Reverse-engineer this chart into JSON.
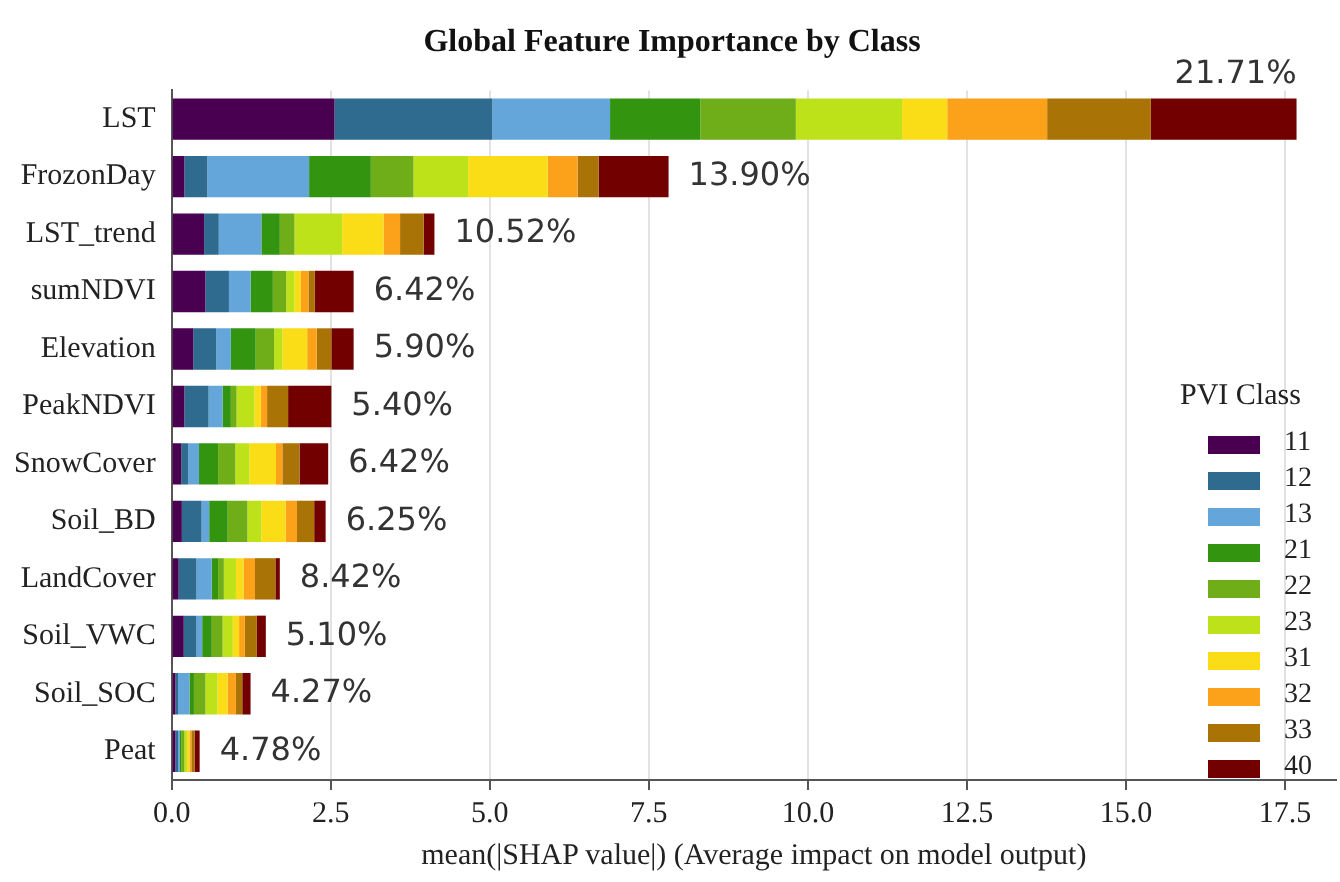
{
  "chart_data": {
    "type": "bar",
    "orientation": "horizontal",
    "stacked": true,
    "title": "Global Feature Importance by Class",
    "xlabel": "mean(|SHAP value|) (Average impact on model output)",
    "legend_title": "PVI Class",
    "legend": "right",
    "grid": "x",
    "categories": [
      "LST",
      "FrozonDay",
      "LST_trend",
      "sumNDVI",
      "Elevation",
      "PeakNDVI",
      "SnowCover",
      "Soil_BD",
      "LandCover",
      "Soil_VWC",
      "Soil_SOC",
      "Peat"
    ],
    "xlim": [
      0,
      18.3
    ],
    "xticks": [
      {
        "value": 0,
        "label": "0.0"
      },
      2.5,
      {
        "value": 5,
        "label": "5.0"
      },
      7.5,
      {
        "value": 10,
        "label": "10.0"
      },
      12.5,
      {
        "value": 15,
        "label": "15.0"
      },
      17.5
    ],
    "annotations": [
      {
        "text": "21.71%",
        "x": 17.68,
        "y": "LST"
      },
      {
        "text": "13.90%",
        "x": 7.81,
        "y": "FrozonDay"
      },
      {
        "text": "10.52%",
        "x": 4.13,
        "y": "LST_trend"
      },
      {
        "text": "6.42%",
        "x": 2.86,
        "y": "sumNDVI"
      },
      {
        "text": "5.90%",
        "x": 2.86,
        "y": "Elevation"
      },
      {
        "text": "5.40%",
        "x": 2.51,
        "y": "PeakNDVI"
      },
      {
        "text": "6.42%",
        "x": 2.46,
        "y": "SnowCover"
      },
      {
        "text": "6.25%",
        "x": 2.42,
        "y": "Soil_BD"
      },
      {
        "text": "8.42%",
        "x": 1.7,
        "y": "LandCover"
      },
      {
        "text": "5.10%",
        "x": 1.48,
        "y": "Soil_VWC"
      },
      {
        "text": "4.27%",
        "x": 1.24,
        "y": "Soil_SOC"
      },
      {
        "text": "4.78%",
        "x": 0.44,
        "y": "Peat"
      }
    ],
    "series": [
      {
        "name": "11",
        "color": "#4a0050",
        "values": [
          2.56,
          0.2,
          0.51,
          0.53,
          0.34,
          0.2,
          0.15,
          0.16,
          0.11,
          0.19,
          0.06,
          0.06
        ]
      },
      {
        "name": "12",
        "color": "#2f6a8f",
        "values": [
          2.48,
          0.36,
          0.23,
          0.37,
          0.36,
          0.38,
          0.11,
          0.31,
          0.28,
          0.2,
          0.04,
          0.04
        ]
      },
      {
        "name": "13",
        "color": "#64a6d9",
        "values": [
          1.85,
          1.6,
          0.67,
          0.34,
          0.23,
          0.22,
          0.17,
          0.12,
          0.24,
          0.09,
          0.18,
          0.03
        ]
      },
      {
        "name": "21",
        "color": "#339410",
        "values": [
          1.42,
          0.97,
          0.29,
          0.35,
          0.39,
          0.13,
          0.3,
          0.29,
          0.1,
          0.15,
          0.07,
          0.02
        ]
      },
      {
        "name": "22",
        "color": "#6fae18",
        "values": [
          1.5,
          0.67,
          0.23,
          0.21,
          0.29,
          0.09,
          0.27,
          0.31,
          0.09,
          0.17,
          0.18,
          0.05
        ]
      },
      {
        "name": "23",
        "color": "#bde21a",
        "values": [
          1.67,
          0.86,
          0.75,
          0.13,
          0.13,
          0.28,
          0.22,
          0.22,
          0.19,
          0.16,
          0.19,
          0.04
        ]
      },
      {
        "name": "31",
        "color": "#fadc17",
        "values": [
          0.71,
          1.25,
          0.65,
          0.1,
          0.39,
          0.1,
          0.42,
          0.38,
          0.12,
          0.1,
          0.16,
          0.04
        ]
      },
      {
        "name": "32",
        "color": "#fba11a",
        "values": [
          1.57,
          0.47,
          0.26,
          0.12,
          0.15,
          0.1,
          0.1,
          0.18,
          0.18,
          0.09,
          0.13,
          0.03
        ]
      },
      {
        "name": "33",
        "color": "#aa7305",
        "values": [
          1.63,
          0.33,
          0.37,
          0.1,
          0.23,
          0.33,
          0.27,
          0.27,
          0.32,
          0.19,
          0.1,
          0.05
        ]
      },
      {
        "name": "40",
        "color": "#720000",
        "values": [
          2.29,
          1.1,
          0.17,
          0.61,
          0.35,
          0.68,
          0.45,
          0.18,
          0.07,
          0.14,
          0.13,
          0.08
        ]
      }
    ]
  }
}
